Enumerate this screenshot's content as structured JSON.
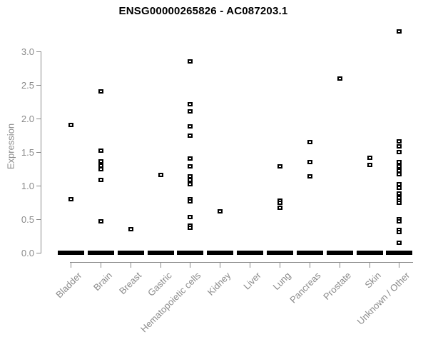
{
  "page_title": "ENSG00000265826 - AC087203.1",
  "colors": {
    "axis": "#8a8a8a",
    "tick_label": "#8a8a8a",
    "title": "#000000",
    "point": "#000000",
    "zero_bar": "#000000",
    "background": "#ffffff"
  },
  "chart_data": {
    "type": "scatter",
    "title": "ENSG00000265826 - AC087203.1",
    "xlabel": "",
    "ylabel": "Expression",
    "ylim": [
      0.0,
      3.3
    ],
    "ytick_labels": [
      "0.0",
      "0.5",
      "1.0",
      "1.5",
      "2.0",
      "2.5",
      "3.0"
    ],
    "grid": false,
    "legend": "none",
    "marker": "open-square",
    "zero_mass_note": "thick black bar of overlapping points at expression 0 for every category",
    "categories": [
      "Bladder",
      "Brain",
      "Breast",
      "Gastric",
      "Hematopoietic cells",
      "Kidney",
      "Liver",
      "Lung",
      "Pancreas",
      "Prostate",
      "Skin",
      "Unknown / Other"
    ],
    "series": [
      {
        "name": "Bladder",
        "zero_mass": true,
        "values": [
          1.9,
          0.8
        ]
      },
      {
        "name": "Brain",
        "zero_mass": true,
        "values": [
          2.4,
          1.52,
          1.36,
          1.3,
          1.24,
          1.08,
          0.47
        ]
      },
      {
        "name": "Breast",
        "zero_mass": true,
        "values": [
          0.35
        ]
      },
      {
        "name": "Gastric",
        "zero_mass": true,
        "values": [
          1.16
        ]
      },
      {
        "name": "Hematopoietic cells",
        "zero_mass": true,
        "values": [
          2.85,
          2.21,
          2.11,
          1.88,
          1.74,
          1.4,
          1.29,
          1.14,
          1.08,
          1.02,
          0.8,
          0.77,
          0.53,
          0.4,
          0.37
        ]
      },
      {
        "name": "Kidney",
        "zero_mass": true,
        "values": [
          0.62
        ]
      },
      {
        "name": "Liver",
        "zero_mass": true,
        "values": []
      },
      {
        "name": "Lung",
        "zero_mass": true,
        "values": [
          1.29,
          0.78,
          0.75,
          0.67
        ]
      },
      {
        "name": "Pancreas",
        "zero_mass": true,
        "values": [
          1.65,
          1.35,
          1.14
        ]
      },
      {
        "name": "Prostate",
        "zero_mass": true,
        "values": [
          2.6
        ]
      },
      {
        "name": "Skin",
        "zero_mass": true,
        "values": [
          1.41,
          1.31
        ]
      },
      {
        "name": "Unknown / Other",
        "zero_mass": true,
        "values": [
          3.3,
          1.66,
          1.58,
          1.5,
          1.35,
          1.29,
          1.22,
          1.17,
          1.02,
          0.97,
          0.88,
          0.82,
          0.78,
          0.74,
          0.5,
          0.47,
          0.34,
          0.31,
          0.15
        ]
      }
    ]
  }
}
